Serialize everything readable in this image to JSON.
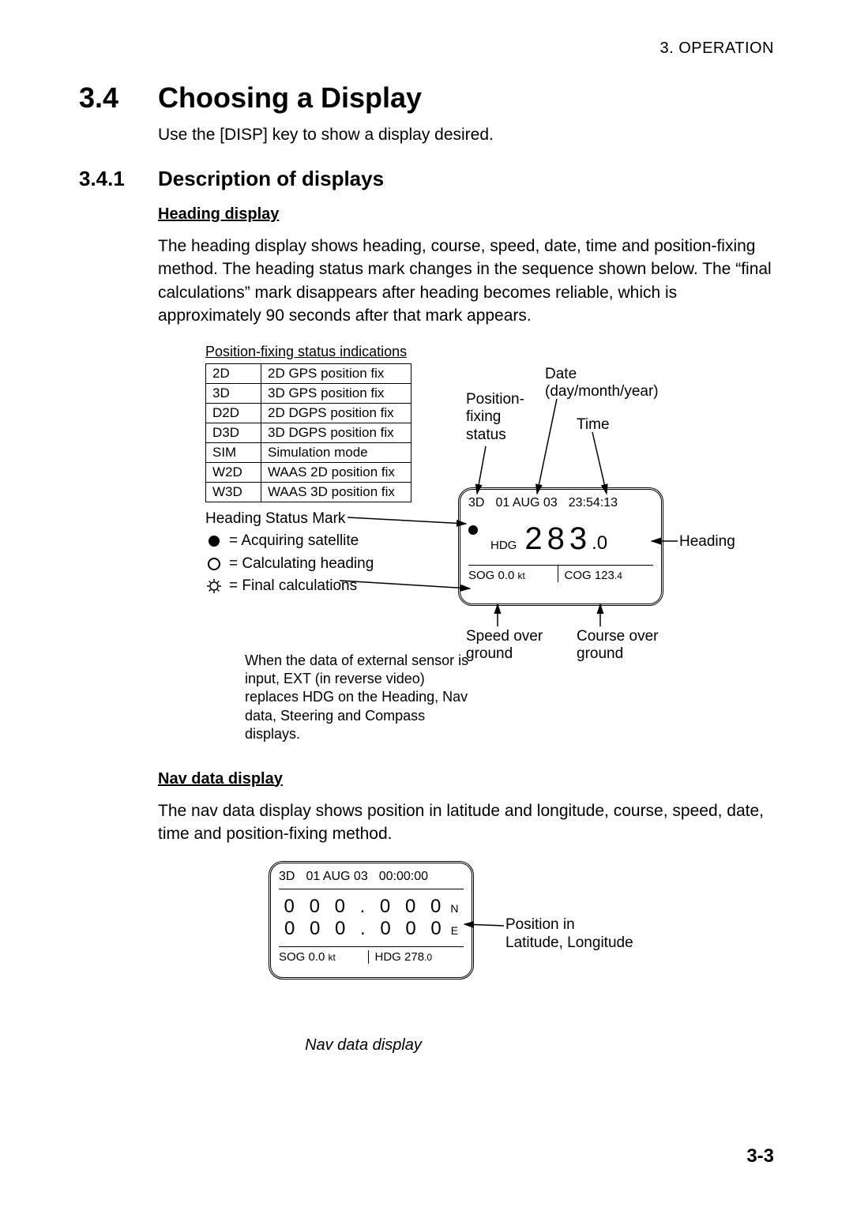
{
  "header": {
    "chapter": "3. OPERATION"
  },
  "section": {
    "num": "3.4",
    "title": "Choosing a Display",
    "intro": "Use the [DISP] key to show a display desired."
  },
  "subsection": {
    "num": "3.4.1",
    "title": "Description of displays"
  },
  "heading_display": {
    "title": "Heading display",
    "para": "The heading display shows heading, course, speed, date, time and position-fixing method. The heading status mark changes in the sequence shown below. The “final calculations” mark disappears after heading becomes reliable, which is approximately 90 seconds after that mark appears.",
    "table_caption": "Position-fixing status indications",
    "status_rows": [
      {
        "code": "2D",
        "desc": "2D GPS position fix"
      },
      {
        "code": "3D",
        "desc": "3D GPS position fix"
      },
      {
        "code": "D2D",
        "desc": "2D DGPS position fix"
      },
      {
        "code": "D3D",
        "desc": "3D DGPS position fix"
      },
      {
        "code": "SIM",
        "desc": "Simulation mode"
      },
      {
        "code": "W2D",
        "desc": "WAAS 2D position fix"
      },
      {
        "code": "W3D",
        "desc": "WAAS 3D position fix"
      }
    ],
    "legend": {
      "title": "Heading Status Mark",
      "items": [
        {
          "icon": "filled-circle",
          "text": "= Acquiring satellite"
        },
        {
          "icon": "open-circle",
          "text": "= Calculating heading"
        },
        {
          "icon": "sun-circle",
          "text": "= Final calculations"
        }
      ]
    },
    "note": "When the data of external sensor is input, EXT (in reverse video) replaces HDG on the Heading, Nav data, Steering and Compass displays.",
    "device": {
      "fix": "3D",
      "date": "01  AUG 03",
      "time": "23:54:13",
      "hdg_label": "HDG",
      "hdg_int": "283",
      "hdg_dec": ".0",
      "sog_label": "SOG",
      "sog_val": "0.0",
      "sog_unit": "kt",
      "cog_label": "COG",
      "cog_int": "123",
      "cog_dec": ".4"
    },
    "callouts": {
      "pos_fix": "Position-\nfixing\nstatus",
      "date": "Date\n(day/month/year)",
      "time": "Time",
      "heading": "Heading",
      "sog": "Speed over\nground",
      "cog": "Course over\nground"
    }
  },
  "nav_display": {
    "title": "Nav data display",
    "para": "The nav data display shows position in latitude and longitude, course, speed, date, time and position-fixing method.",
    "device": {
      "fix": "3D",
      "date": "01  AUG 03",
      "time": "00:00:00",
      "lat": "0  0 0 . 0 0 0",
      "lat_hem": "N",
      "lon": "0  0 0 . 0 0 0",
      "lon_hem": "E",
      "sog_label": "SOG",
      "sog_val": "0.0",
      "sog_unit": "kt",
      "hdg_label": "HDG",
      "hdg_int": "278",
      "hdg_dec": ".0"
    },
    "callout": "Position in\nLatitude, Longitude",
    "caption": "Nav data display"
  },
  "page_number": "3-3",
  "colors": {
    "text": "#000000",
    "bg": "#ffffff"
  }
}
